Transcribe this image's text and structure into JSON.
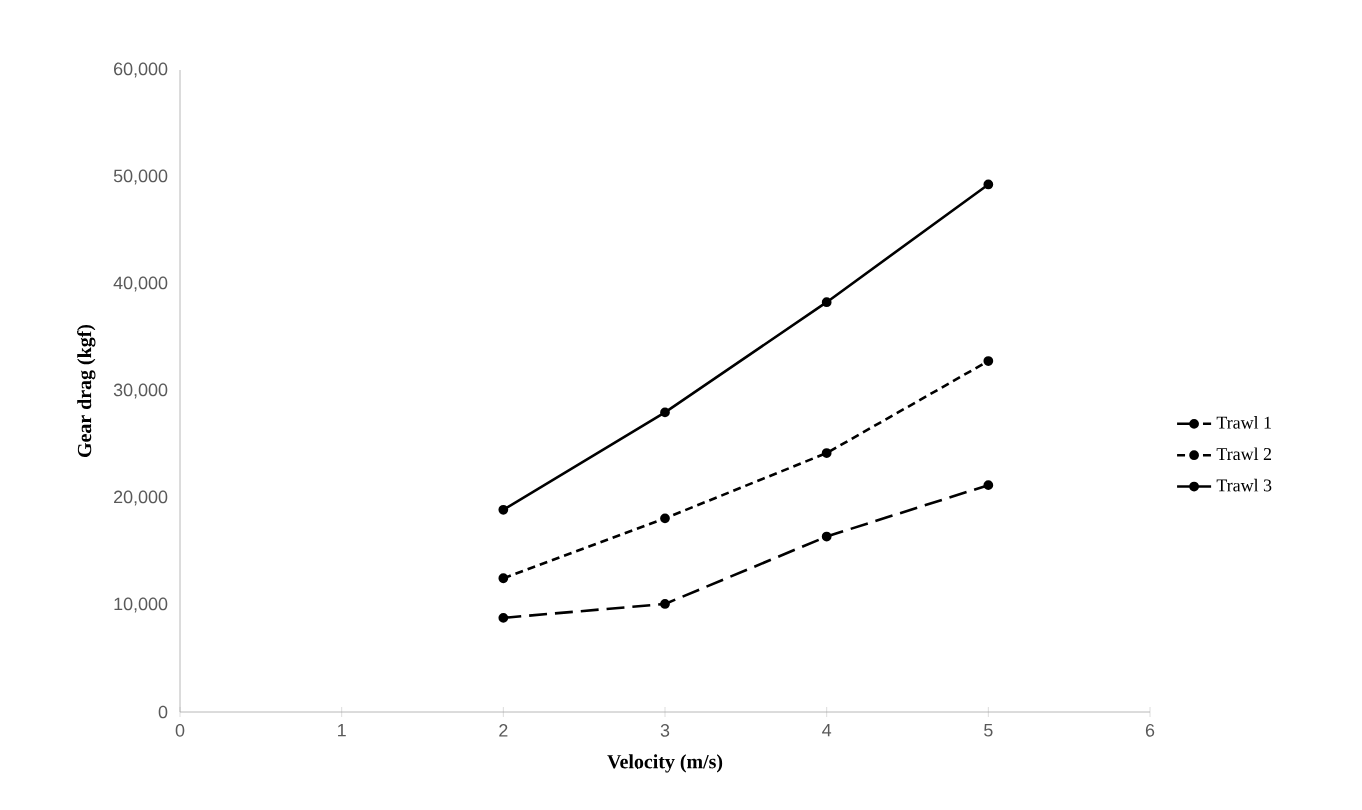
{
  "chart_data": {
    "type": "line",
    "xlabel": "Velocity (m/s)",
    "ylabel": "Gear drag (kgf)",
    "x": [
      2,
      3,
      4,
      5
    ],
    "series": [
      {
        "name": "Trawl 1",
        "color": "#000000",
        "line_style": "dashed",
        "values": [
          8800,
          10100,
          16400,
          21200
        ]
      },
      {
        "name": "Trawl 2",
        "color": "#000000",
        "line_style": "dotted",
        "values": [
          12500,
          18100,
          24200,
          32800
        ]
      },
      {
        "name": "Trawl 3",
        "color": "#000000",
        "line_style": "solid",
        "values": [
          18900,
          28000,
          38300,
          49300
        ]
      }
    ],
    "xlim": [
      0,
      6
    ],
    "xticks": [
      0,
      1,
      2,
      3,
      4,
      5,
      6
    ],
    "ylim": [
      0,
      60000
    ],
    "yticks": [
      {
        "value": 0,
        "label": "0"
      },
      {
        "value": 10000,
        "label": "10,000"
      },
      {
        "value": 20000,
        "label": "20,000"
      },
      {
        "value": 30000,
        "label": "30,000"
      },
      {
        "value": 40000,
        "label": "40,000"
      },
      {
        "value": 50000,
        "label": "50,000"
      },
      {
        "value": 60000,
        "label": "60,000"
      }
    ],
    "marker": "circle",
    "legend": "right",
    "grid": false
  }
}
